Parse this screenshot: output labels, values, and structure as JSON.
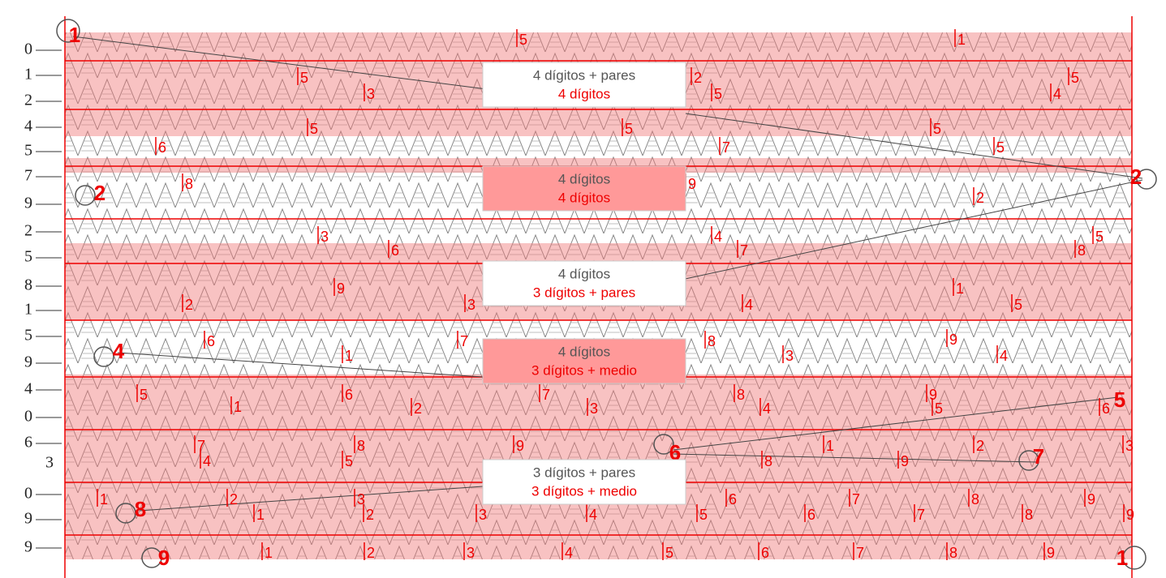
{
  "row_labels": [
    "0",
    "1",
    "2",
    "4",
    "5",
    "7",
    "9",
    "2",
    "5",
    "8",
    "1",
    "5",
    "9",
    "4",
    "0",
    "6",
    "3",
    "0",
    "9",
    "9"
  ],
  "boxes": [
    {
      "line1": "4 dígitos + pares",
      "line2": "4 dígitos"
    },
    {
      "line1": "4 dígitos",
      "line2": "4 dígitos"
    },
    {
      "line1": "4 dígitos",
      "line2": "3 dígitos + pares"
    },
    {
      "line1": "4 dígitos",
      "line2": "3 dígitos + medio"
    },
    {
      "line1": "3 dígitos + pares",
      "line2": "3 dígitos + medio"
    }
  ],
  "markers": [
    "1",
    "2",
    "2",
    "4",
    "5",
    "6",
    "7",
    "8",
    "9",
    "1"
  ],
  "digits": [
    "5",
    "1",
    "5",
    "2",
    "5",
    "3",
    "5",
    "4",
    "5",
    "5",
    "5",
    "6",
    "7",
    "5",
    "8",
    "9",
    "2",
    "3",
    "4",
    "5",
    "6",
    "7",
    "8",
    "9",
    "1",
    "2",
    "3",
    "4",
    "5",
    "6",
    "7",
    "8",
    "9",
    "1",
    "3",
    "4",
    "5",
    "1",
    "6",
    "7",
    "8",
    "9",
    "2",
    "3",
    "4",
    "5",
    "6",
    "7",
    "8",
    "9",
    "1",
    "2",
    "3",
    "4",
    "5",
    "8",
    "9",
    "1",
    "2",
    "3",
    "6",
    "7",
    "8",
    "9",
    "1",
    "2",
    "3",
    "4",
    "5",
    "6",
    "7",
    "8",
    "9",
    "1",
    "2",
    "3",
    "4",
    "5",
    "6",
    "7",
    "8",
    "9"
  ]
}
